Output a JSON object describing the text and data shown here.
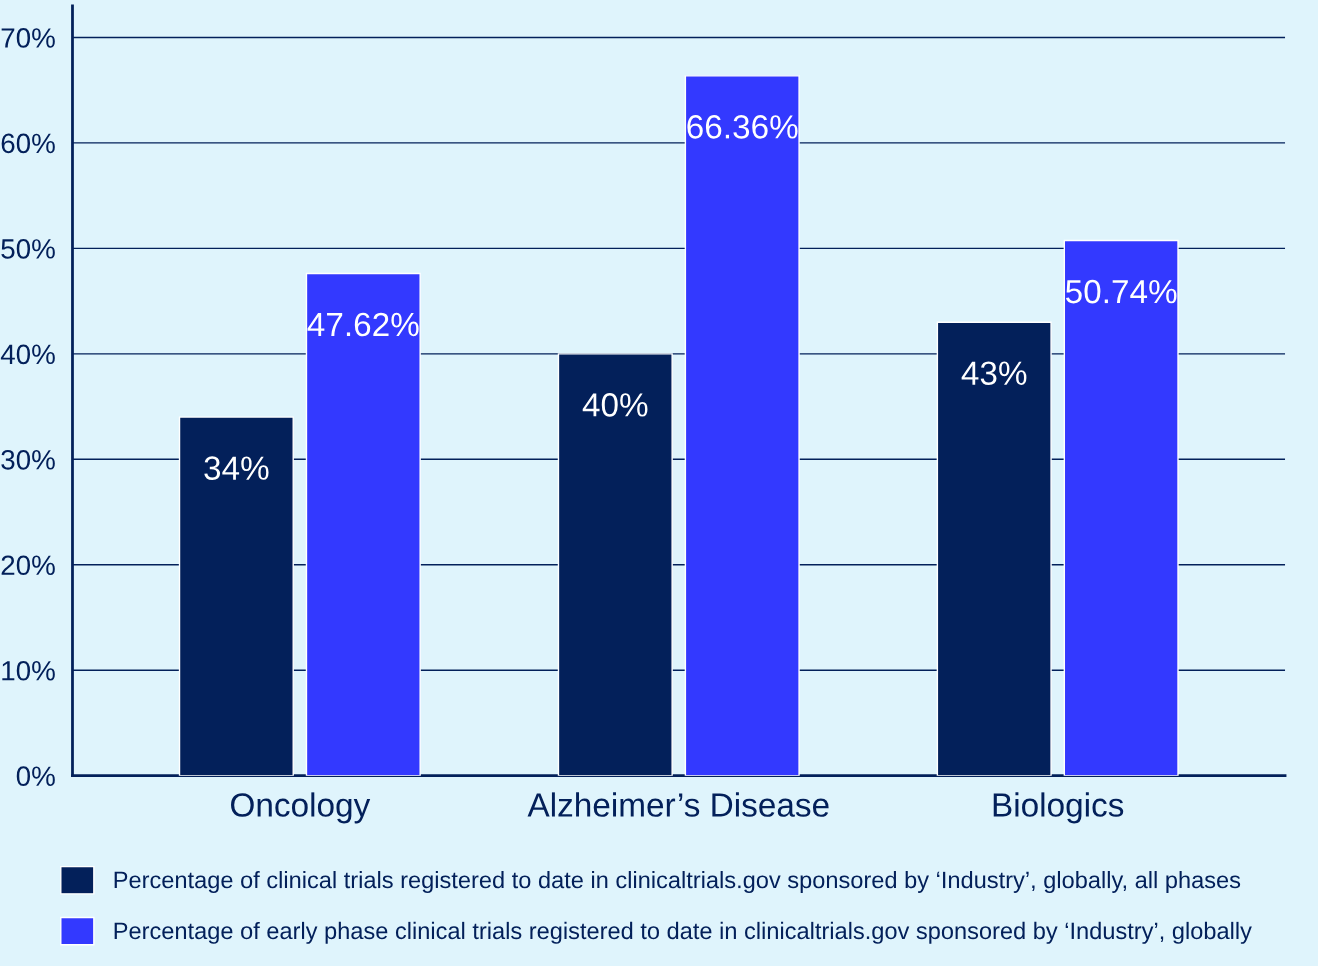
{
  "chart_data": {
    "type": "bar",
    "categories": [
      "Oncology",
      "Alzheimer’s Disease",
      "Biologics"
    ],
    "series": [
      {
        "name": "Percentage of clinical trials registered to date in clinicaltrials.gov sponsored by ‘Industry’, globally, all phases",
        "color": "#03205a",
        "values": [
          34,
          40,
          43
        ],
        "value_labels": [
          "34%",
          "40%",
          "43%"
        ]
      },
      {
        "name": "Percentage of early phase clinical trials registered to date in clinicaltrials.gov sponsored by ‘Industry’, globally",
        "color": "#3339ff",
        "values": [
          47.62,
          66.36,
          50.74
        ],
        "value_labels": [
          "47.62%",
          "66.36%",
          "50.74%"
        ]
      }
    ],
    "ylim": [
      0,
      73
    ],
    "yticks": [
      {
        "value": 0,
        "label": "0%"
      },
      {
        "value": 10,
        "label": "10%"
      },
      {
        "value": 20,
        "label": "20%"
      },
      {
        "value": 30,
        "label": "30%"
      },
      {
        "value": 40,
        "label": "40%"
      },
      {
        "value": 50,
        "label": "50%"
      },
      {
        "value": 60,
        "label": "60%"
      },
      {
        "value": 70,
        "label": "70%"
      }
    ],
    "grid": "y",
    "legend": "bottom"
  }
}
